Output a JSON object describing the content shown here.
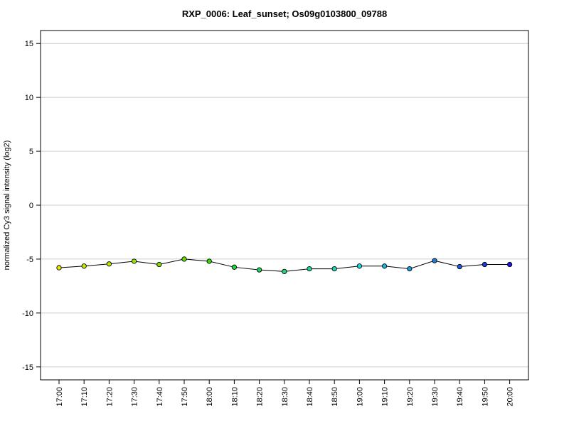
{
  "chart_data": {
    "type": "line",
    "title": "RXP_0006: Leaf_sunset; Os09g0103800_09788",
    "xlabel": "",
    "ylabel": "normalized Cy3 signal intensity (log2)",
    "ylim": [
      -16.2,
      16.2
    ],
    "yticks": [
      15,
      10,
      5,
      0,
      -5,
      -10,
      -15
    ],
    "grid": true,
    "categories": [
      "17:00",
      "17:10",
      "17:20",
      "17:30",
      "17:40",
      "17:50",
      "18:00",
      "18:10",
      "18:20",
      "18:30",
      "18:40",
      "18:50",
      "19:00",
      "19:10",
      "19:20",
      "19:30",
      "19:40",
      "19:50",
      "20:00"
    ],
    "values": [
      -5.8,
      -5.65,
      -5.45,
      -5.2,
      -5.5,
      -5.0,
      -5.2,
      -5.75,
      -6.0,
      -6.15,
      -5.9,
      -5.9,
      -5.65,
      -5.65,
      -5.9,
      -5.15,
      -5.7,
      -5.5,
      -5.5
    ],
    "point_colors": [
      "#e8e800",
      "#cce800",
      "#b4e600",
      "#9ae400",
      "#80e000",
      "#5ee000",
      "#34de00",
      "#22d83a",
      "#1ed85e",
      "#1cd87e",
      "#1cd89e",
      "#1ad8b6",
      "#1ad8d0",
      "#1ab8d8",
      "#1a9ed8",
      "#1a7ed8",
      "#1a5cd8",
      "#1a3ed8",
      "#1a1ad8"
    ],
    "line_color": "#000000",
    "grid_color": "#cccccc"
  }
}
